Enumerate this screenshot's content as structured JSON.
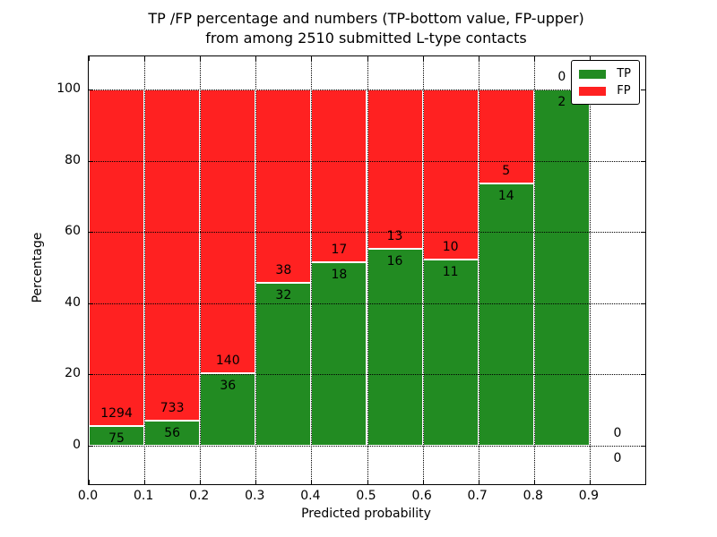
{
  "chart_data": {
    "type": "bar",
    "stacked": true,
    "title_line1": "TP /FP percentage and numbers (TP-bottom value, FP-upper)",
    "title_line2": "from among 2510 submitted L-type contacts",
    "xlabel": "Predicted probability",
    "ylabel": "Percentage",
    "xlim": [
      0.0,
      1.0
    ],
    "ylim": [
      -10.8,
      109.3
    ],
    "xticks": [
      "0.0",
      "0.1",
      "0.2",
      "0.3",
      "0.4",
      "0.5",
      "0.6",
      "0.7",
      "0.8",
      "0.9"
    ],
    "yticks": [
      "0",
      "20",
      "40",
      "60",
      "80",
      "100"
    ],
    "grid": true,
    "grid_style": "dotted",
    "legend_position": "upper right",
    "series": [
      {
        "name": "TP",
        "color": "#228b22"
      },
      {
        "name": "FP",
        "color": "#ff2121"
      }
    ],
    "bins": [
      {
        "x0": 0.0,
        "x1": 0.1,
        "tp": 75,
        "fp": 1294,
        "tp_percent": 5.5
      },
      {
        "x0": 0.1,
        "x1": 0.2,
        "tp": 56,
        "fp": 733,
        "tp_percent": 7.1
      },
      {
        "x0": 0.2,
        "x1": 0.3,
        "tp": 36,
        "fp": 140,
        "tp_percent": 20.5
      },
      {
        "x0": 0.3,
        "x1": 0.4,
        "tp": 32,
        "fp": 38,
        "tp_percent": 45.7
      },
      {
        "x0": 0.4,
        "x1": 0.5,
        "tp": 18,
        "fp": 17,
        "tp_percent": 51.4
      },
      {
        "x0": 0.5,
        "x1": 0.6,
        "tp": 16,
        "fp": 13,
        "tp_percent": 55.2
      },
      {
        "x0": 0.6,
        "x1": 0.7,
        "tp": 11,
        "fp": 10,
        "tp_percent": 52.4
      },
      {
        "x0": 0.7,
        "x1": 0.8,
        "tp": 14,
        "fp": 5,
        "tp_percent": 73.7
      },
      {
        "x0": 0.8,
        "x1": 0.9,
        "tp": 2,
        "fp": 0,
        "tp_percent": 100.0
      },
      {
        "x0": 0.9,
        "x1": 1.0,
        "tp": 0,
        "fp": 0,
        "tp_percent": 0.0
      }
    ],
    "total_submitted": 2510
  }
}
